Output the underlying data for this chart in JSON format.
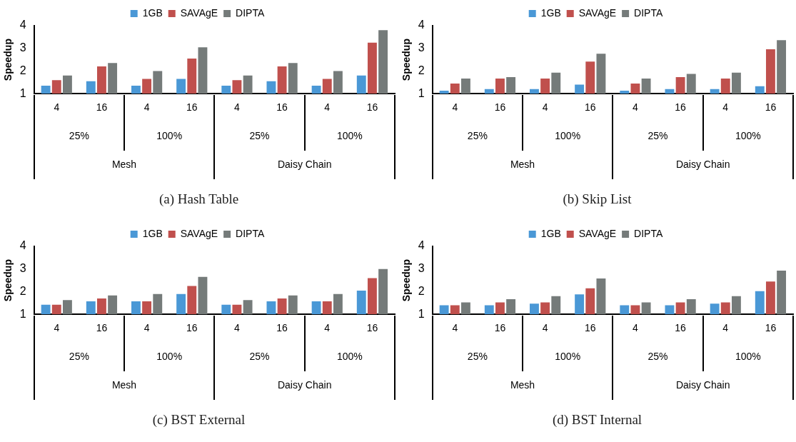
{
  "chart_data": [
    {
      "type": "bar",
      "title": "(a) Hash Table",
      "ylabel": "Speedup",
      "categories": [
        "4",
        "16",
        "4",
        "16",
        "4",
        "16",
        "4",
        "16"
      ],
      "annotations": [
        "25%",
        "100%",
        "25%",
        "100%",
        "Mesh",
        "Daisy Chain"
      ],
      "ylim": [
        1,
        4
      ],
      "yticks": [
        1,
        2,
        3,
        4
      ],
      "grid": false,
      "legend": "top",
      "series": [
        {
          "name": "1GB",
          "color": "#4a98d6",
          "values": [
            1.35,
            1.55,
            1.35,
            1.65,
            1.35,
            1.55,
            1.35,
            1.8
          ]
        },
        {
          "name": "SAVAgE",
          "color": "#c0504d",
          "values": [
            1.6,
            2.2,
            1.65,
            2.55,
            1.6,
            2.2,
            1.65,
            3.25
          ]
        },
        {
          "name": "DIPTA",
          "color": "#757b7a",
          "values": [
            1.8,
            2.35,
            2.0,
            3.05,
            1.8,
            2.35,
            2.0,
            3.8
          ]
        }
      ]
    },
    {
      "type": "bar",
      "title": "(b) Skip List",
      "ylabel": "Speedup",
      "categories": [
        "4",
        "16",
        "4",
        "16",
        "4",
        "16",
        "4",
        "16"
      ],
      "annotations": [
        "25%",
        "100%",
        "25%",
        "100%",
        "Mesh",
        "Daisy Chain"
      ],
      "ylim": [
        1,
        4
      ],
      "yticks": [
        1,
        2,
        3,
        4
      ],
      "grid": false,
      "legend": "top",
      "series": [
        {
          "name": "1GB",
          "color": "#4a98d6",
          "values": [
            1.13,
            1.2,
            1.2,
            1.4,
            1.13,
            1.2,
            1.2,
            1.33
          ]
        },
        {
          "name": "SAVAgE",
          "color": "#c0504d",
          "values": [
            1.45,
            1.67,
            1.67,
            2.42,
            1.45,
            1.73,
            1.67,
            2.96
          ]
        },
        {
          "name": "DIPTA",
          "color": "#757b7a",
          "values": [
            1.67,
            1.73,
            1.93,
            2.76,
            1.67,
            1.87,
            1.93,
            3.36
          ]
        }
      ]
    },
    {
      "type": "bar",
      "title": "(c) BST External",
      "ylabel": "Speedup",
      "categories": [
        "4",
        "16",
        "4",
        "16",
        "4",
        "16",
        "4",
        "16"
      ],
      "annotations": [
        "25%",
        "100%",
        "25%",
        "100%",
        "Mesh",
        "Daisy Chain"
      ],
      "ylim": [
        1,
        4
      ],
      "yticks": [
        1,
        2,
        3,
        4
      ],
      "grid": false,
      "legend": "top",
      "series": [
        {
          "name": "1GB",
          "color": "#4a98d6",
          "values": [
            1.42,
            1.57,
            1.57,
            1.9,
            1.42,
            1.57,
            1.57,
            2.05
          ]
        },
        {
          "name": "SAVAgE",
          "color": "#c0504d",
          "values": [
            1.42,
            1.7,
            1.57,
            2.25,
            1.42,
            1.7,
            1.57,
            2.6
          ]
        },
        {
          "name": "DIPTA",
          "color": "#757b7a",
          "values": [
            1.63,
            1.83,
            1.9,
            2.65,
            1.63,
            1.83,
            1.9,
            3.0
          ]
        }
      ]
    },
    {
      "type": "bar",
      "title": "(d) BST Internal",
      "ylabel": "Speedup",
      "categories": [
        "4",
        "16",
        "4",
        "16",
        "4",
        "16",
        "4",
        "16"
      ],
      "annotations": [
        "25%",
        "100%",
        "25%",
        "100%",
        "Mesh",
        "Daisy Chain"
      ],
      "ylim": [
        1,
        4
      ],
      "yticks": [
        1,
        2,
        3,
        4
      ],
      "grid": false,
      "legend": "top",
      "series": [
        {
          "name": "1GB",
          "color": "#4a98d6",
          "values": [
            1.4,
            1.4,
            1.47,
            1.88,
            1.4,
            1.4,
            1.47,
            2.02
          ]
        },
        {
          "name": "SAVAgE",
          "color": "#c0504d",
          "values": [
            1.4,
            1.53,
            1.53,
            2.15,
            1.4,
            1.53,
            1.53,
            2.45
          ]
        },
        {
          "name": "DIPTA",
          "color": "#757b7a",
          "values": [
            1.53,
            1.67,
            1.8,
            2.58,
            1.53,
            1.67,
            1.8,
            2.93
          ]
        }
      ]
    }
  ]
}
